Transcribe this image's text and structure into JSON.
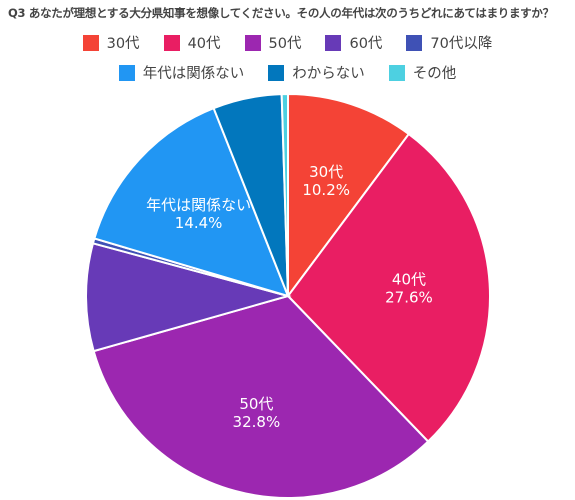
{
  "chart_data": {
    "type": "pie",
    "title": "Q3 あなたが理想とする大分県知事を想像してください。その人の年代は次のうちどれにあてはまりますか？",
    "legend_position": "top",
    "slices": [
      {
        "label": "30代",
        "value": 10.2,
        "color": "#f44336",
        "data_label": "30代\n10.2%"
      },
      {
        "label": "40代",
        "value": 27.6,
        "color": "#e91e63",
        "data_label": "40代\n27.6%"
      },
      {
        "label": "50代",
        "value": 32.8,
        "color": "#9c27b0",
        "data_label": "50代\n32.8%"
      },
      {
        "label": "60代",
        "value": 8.6,
        "color": "#673ab7",
        "data_label": ""
      },
      {
        "label": "70代以降",
        "value": 0.4,
        "color": "#3f51b5",
        "data_label": ""
      },
      {
        "label": "年代は関係ない",
        "value": 14.4,
        "color": "#2196f3",
        "data_label": "年代は関係ない\n14.4%"
      },
      {
        "label": "わからない",
        "value": 5.5,
        "color": "#0277bd",
        "data_label": ""
      },
      {
        "label": "その他",
        "value": 0.5,
        "color": "#4dd0e1",
        "data_label": ""
      }
    ]
  }
}
